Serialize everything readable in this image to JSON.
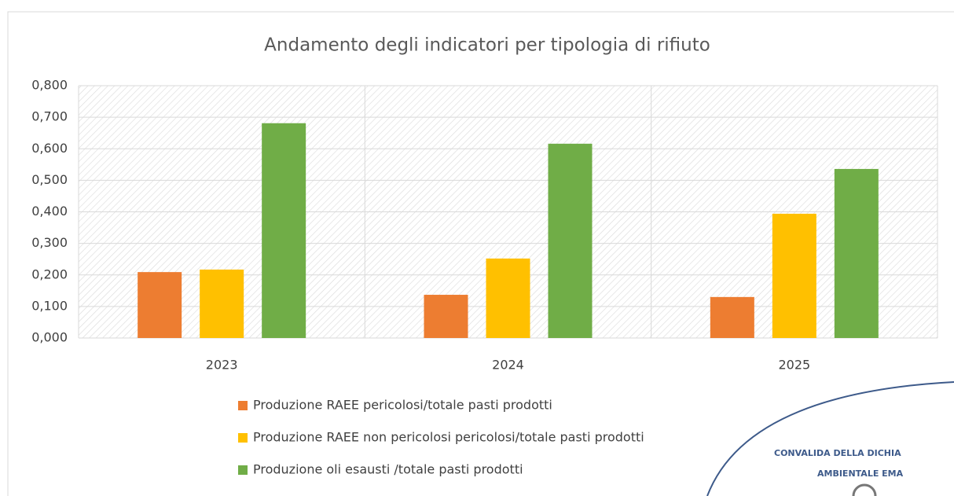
{
  "chart_data": {
    "type": "bar",
    "title": "Andamento degli indicatori per tipologia di rifiuto",
    "categories": [
      "2023",
      "2024",
      "2025"
    ],
    "series": [
      {
        "name": "Produzione RAEE pericolosi/totale pasti prodotti",
        "color": "#ed7d31",
        "values": [
          0.209,
          0.137,
          0.13
        ]
      },
      {
        "name": "Produzione RAEE non pericolosi pericolosi/totale pasti prodotti",
        "color": "#ffc000",
        "values": [
          0.217,
          0.252,
          0.394
        ]
      },
      {
        "name": "Produzione oli esausti /totale pasti prodotti",
        "color": "#70ad47",
        "values": [
          0.681,
          0.616,
          0.536
        ]
      }
    ],
    "ylim": [
      0,
      0.8
    ],
    "yticks": [
      {
        "value": 0,
        "label": "0,000"
      },
      {
        "value": 0.1,
        "label": "0,100"
      },
      {
        "value": 0.2,
        "label": "0,200"
      },
      {
        "value": 0.3,
        "label": "0,300"
      },
      {
        "value": 0.4,
        "label": "0,400"
      },
      {
        "value": 0.5,
        "label": "0,500"
      },
      {
        "value": 0.6,
        "label": "0,600"
      },
      {
        "value": 0.7,
        "label": "0,700"
      },
      {
        "value": 0.8,
        "label": "0,800"
      }
    ],
    "grid": true,
    "legend": "bottom"
  },
  "stamp": {
    "lines": [
      "CONVALIDA DELLA DICHIA",
      "AMBIENTALE EMA"
    ]
  }
}
